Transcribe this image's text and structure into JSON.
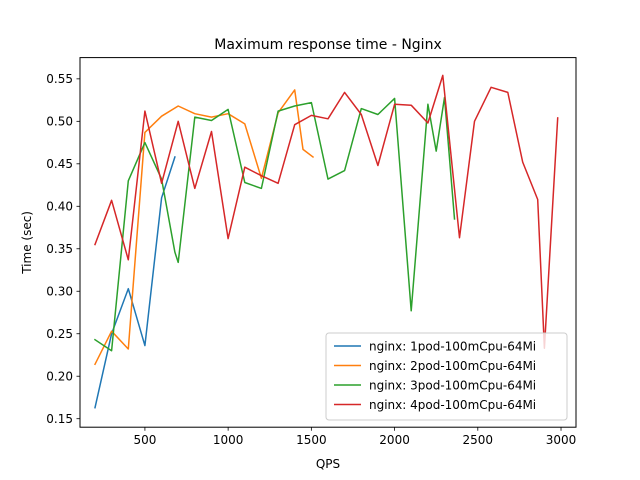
{
  "chart_data": {
    "type": "line",
    "title": "Maximum response time - Nginx",
    "xlabel": "QPS",
    "ylabel": "Time (sec)",
    "xlim": [
      110,
      3090
    ],
    "ylim": [
      0.14,
      0.575
    ],
    "xticks": [
      500,
      1000,
      1500,
      2000,
      2500,
      3000
    ],
    "yticks": [
      0.15,
      0.2,
      0.25,
      0.3,
      0.35,
      0.4,
      0.45,
      0.5,
      0.55
    ],
    "ytick_labels": [
      "0.15",
      "0.20",
      "0.25",
      "0.30",
      "0.35",
      "0.40",
      "0.45",
      "0.50",
      "0.55"
    ],
    "grid": false,
    "legend_position": "lower-right",
    "series": [
      {
        "name": "nginx: 1pod-100mCpu-64Mi",
        "color": "#1f77b4",
        "x": [
          200,
          300,
          400,
          500,
          600,
          680
        ],
        "y": [
          0.163,
          0.25,
          0.303,
          0.236,
          0.41,
          0.458
        ]
      },
      {
        "name": "nginx: 2pod-100mCpu-64Mi",
        "color": "#ff7f0e",
        "x": [
          200,
          300,
          400,
          500,
          600,
          700,
          800,
          900,
          1000,
          1100,
          1200,
          1300,
          1400,
          1450,
          1510
        ],
        "y": [
          0.214,
          0.253,
          0.232,
          0.487,
          0.506,
          0.518,
          0.509,
          0.505,
          0.509,
          0.497,
          0.433,
          0.51,
          0.537,
          0.467,
          0.458
        ]
      },
      {
        "name": "nginx: 3pod-100mCpu-64Mi",
        "color": "#2ca02c",
        "x": [
          200,
          300,
          400,
          500,
          600,
          680,
          700,
          800,
          900,
          1000,
          1100,
          1200,
          1300,
          1400,
          1500,
          1600,
          1700,
          1800,
          1900,
          2000,
          2100,
          2200,
          2250,
          2300,
          2360
        ],
        "y": [
          0.243,
          0.23,
          0.43,
          0.475,
          0.432,
          0.346,
          0.334,
          0.505,
          0.501,
          0.514,
          0.428,
          0.421,
          0.512,
          0.518,
          0.522,
          0.432,
          0.442,
          0.515,
          0.508,
          0.527,
          0.277,
          0.52,
          0.465,
          0.528,
          0.385
        ]
      },
      {
        "name": "nginx: 4pod-100mCpu-64Mi",
        "color": "#d62728",
        "x": [
          200,
          300,
          400,
          500,
          600,
          700,
          800,
          900,
          1000,
          1100,
          1200,
          1300,
          1400,
          1500,
          1600,
          1700,
          1800,
          1900,
          2000,
          2100,
          2200,
          2290,
          2390,
          2480,
          2580,
          2680,
          2770,
          2860,
          2900,
          2980
        ],
        "y": [
          0.355,
          0.407,
          0.337,
          0.512,
          0.427,
          0.5,
          0.421,
          0.488,
          0.362,
          0.446,
          0.436,
          0.427,
          0.496,
          0.507,
          0.503,
          0.534,
          0.508,
          0.448,
          0.52,
          0.519,
          0.498,
          0.554,
          0.363,
          0.5,
          0.54,
          0.534,
          0.452,
          0.408,
          0.233,
          0.504
        ]
      }
    ]
  }
}
